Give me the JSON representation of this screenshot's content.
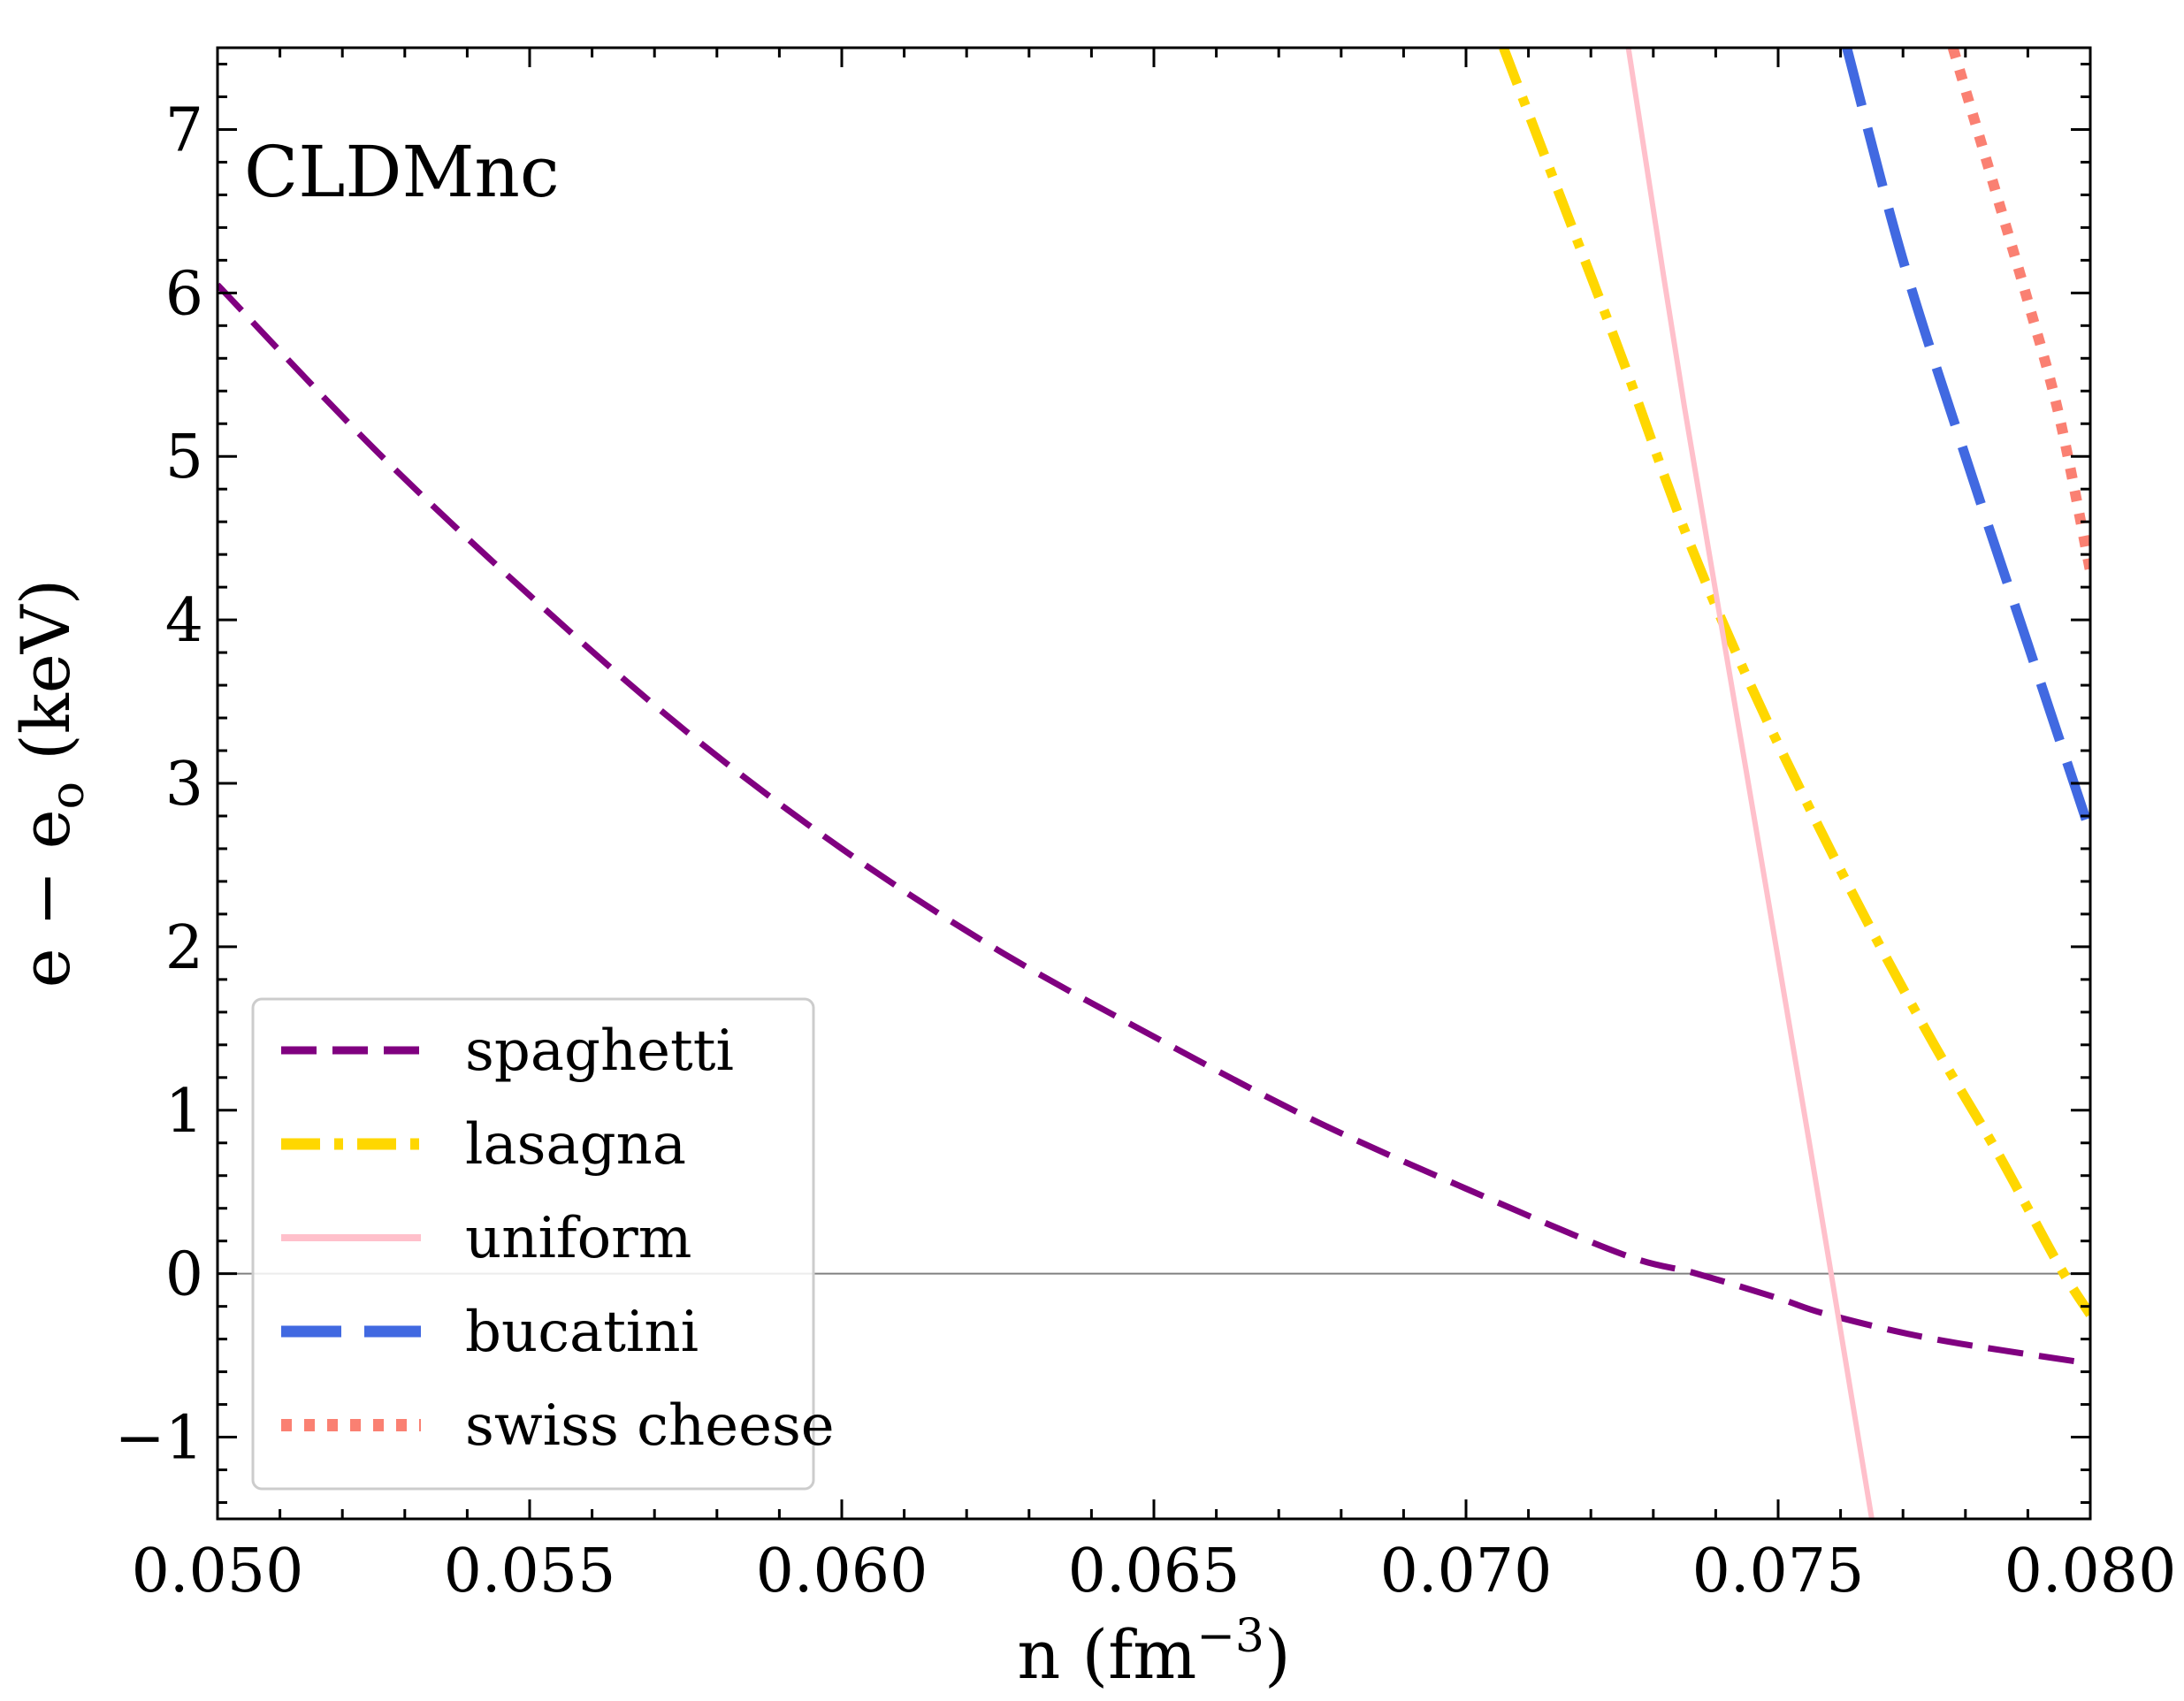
{
  "chart_data": {
    "type": "line",
    "annotation": "CLDMnc",
    "xlabel": "n (fm",
    "xlabel_sup": "−3",
    "xlabel_close": ")",
    "ylabel": "e − e",
    "ylabel_sub": "o",
    "ylabel_unit": " (keV)",
    "xlim": [
      0.05,
      0.08
    ],
    "ylim": [
      -1.5,
      7.5
    ],
    "xticks": [
      0.05,
      0.055,
      0.06,
      0.065,
      0.07,
      0.075,
      0.08
    ],
    "xtick_labels": [
      "0.050",
      "0.055",
      "0.060",
      "0.065",
      "0.070",
      "0.075",
      "0.080"
    ],
    "yticks": [
      -1,
      0,
      1,
      2,
      3,
      4,
      5,
      6,
      7
    ],
    "ytick_labels": [
      "−1",
      "0",
      "1",
      "2",
      "3",
      "4",
      "5",
      "6",
      "7"
    ],
    "reference_line_y": 0,
    "legend_position": "bottom-left",
    "series": [
      {
        "name": "spaghetti",
        "color": "#800080",
        "style": "dashed",
        "x": [
          0.05,
          0.0525,
          0.055,
          0.0575,
          0.06,
          0.0625,
          0.065,
          0.0675,
          0.07,
          0.0725,
          0.0737,
          0.075,
          0.0758,
          0.0775,
          0.08
        ],
        "y": [
          6.05,
          5.05,
          4.15,
          3.32,
          2.6,
          1.98,
          1.45,
          0.95,
          0.52,
          0.12,
          0.0,
          -0.15,
          -0.25,
          -0.4,
          -0.55
        ]
      },
      {
        "name": "lasagna",
        "color": "#FFD700",
        "style": "dashdot",
        "x": [
          0.0706,
          0.0715,
          0.0725,
          0.0735,
          0.0745,
          0.0755,
          0.0765,
          0.0775,
          0.0785,
          0.0795,
          0.08
        ],
        "y": [
          7.5,
          6.6,
          5.6,
          4.55,
          3.65,
          2.85,
          2.1,
          1.4,
          0.75,
          0.05,
          -0.25
        ]
      },
      {
        "name": "uniform",
        "color": "#FFC0CB",
        "style": "solid",
        "x": [
          0.0726,
          0.0735,
          0.0745,
          0.0755,
          0.0765
        ],
        "y": [
          7.5,
          5.3,
          3.05,
          0.8,
          -1.5
        ]
      },
      {
        "name": "bucatini",
        "color": "#4169E1",
        "style": "longdash",
        "x": [
          0.0761,
          0.077,
          0.078,
          0.079,
          0.08
        ],
        "y": [
          7.5,
          6.2,
          5.0,
          3.85,
          2.7
        ]
      },
      {
        "name": "swiss cheese",
        "color": "#FA8072",
        "style": "dotted",
        "x": [
          0.0778,
          0.0785,
          0.079,
          0.0795,
          0.08
        ],
        "y": [
          7.5,
          6.6,
          5.95,
          5.25,
          4.3
        ]
      }
    ]
  }
}
